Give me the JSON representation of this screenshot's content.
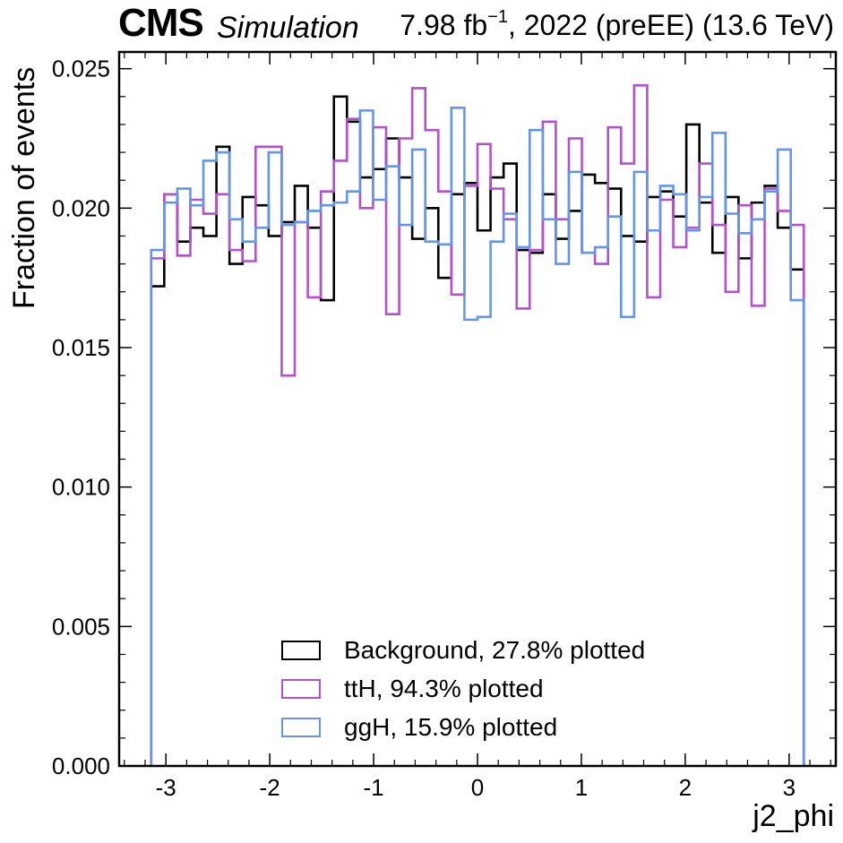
{
  "header": {
    "experiment": "CMS",
    "status": "Simulation",
    "lumi_value": "7.98 fb",
    "lumi_exponent": "−1",
    "lumi_rest": ", 2022 (preEE) (13.6 TeV)"
  },
  "chart_data": {
    "type": "step-histogram",
    "xlabel": "j2_phi",
    "ylabel": "Fraction of events",
    "xlim": [
      -3.45,
      3.45
    ],
    "ylim": [
      0,
      0.0256
    ],
    "x_edges_range": [
      -3.1416,
      3.1416
    ],
    "n_bins": 50,
    "x_ticks": [
      -3,
      -2,
      -1,
      0,
      1,
      2,
      3
    ],
    "x_tick_labels": [
      "-3",
      "-2",
      "-1",
      "0",
      "1",
      "2",
      "3"
    ],
    "y_ticks": [
      0.0,
      0.005,
      0.01,
      0.015,
      0.02,
      0.025
    ],
    "y_tick_labels": [
      "0.000",
      "0.005",
      "0.010",
      "0.015",
      "0.020",
      "0.025"
    ],
    "grid": false,
    "legend_position": "bottom-center",
    "series": [
      {
        "name": "Background, 27.8% plotted",
        "color": "#000000",
        "values": [
          0.0172,
          0.0205,
          0.0188,
          0.0193,
          0.019,
          0.0222,
          0.018,
          0.0204,
          0.0201,
          0.019,
          0.0195,
          0.0208,
          0.0193,
          0.0167,
          0.024,
          0.0231,
          0.0211,
          0.0214,
          0.0225,
          0.0211,
          0.0189,
          0.02,
          0.0175,
          0.0205,
          0.0209,
          0.0192,
          0.0211,
          0.0216,
          0.0185,
          0.0184,
          0.0205,
          0.0189,
          0.0199,
          0.0212,
          0.0209,
          0.0207,
          0.019,
          0.0188,
          0.0204,
          0.0206,
          0.0197,
          0.023,
          0.0202,
          0.0184,
          0.0204,
          0.0182,
          0.0202,
          0.0208,
          0.0193,
          0.0178
        ]
      },
      {
        "name": "ttH, 94.3% plotted",
        "color": "#b452cd",
        "values": [
          0.0182,
          0.0205,
          0.0183,
          0.0203,
          0.0198,
          0.0205,
          0.0185,
          0.0181,
          0.0222,
          0.0222,
          0.014,
          0.0195,
          0.0168,
          0.0206,
          0.0217,
          0.0232,
          0.02,
          0.0229,
          0.0162,
          0.0225,
          0.0243,
          0.0228,
          0.0206,
          0.0169,
          0.0208,
          0.0223,
          0.0207,
          0.0196,
          0.0164,
          0.0185,
          0.0231,
          0.0196,
          0.0225,
          0.0184,
          0.018,
          0.0229,
          0.0216,
          0.0244,
          0.0168,
          0.0203,
          0.0186,
          0.0193,
          0.0216,
          0.0194,
          0.017,
          0.0201,
          0.0165,
          0.0207,
          0.0199,
          0.0194
        ]
      },
      {
        "name": "ggH, 15.9% plotted",
        "color": "#6495ed",
        "values": [
          0.0185,
          0.0202,
          0.0207,
          0.0201,
          0.0217,
          0.022,
          0.0196,
          0.0188,
          0.0193,
          0.022,
          0.0194,
          0.0195,
          0.0199,
          0.0201,
          0.0202,
          0.0206,
          0.0235,
          0.0203,
          0.0215,
          0.0194,
          0.0221,
          0.0188,
          0.0187,
          0.0236,
          0.016,
          0.0161,
          0.0188,
          0.0198,
          0.0186,
          0.0228,
          0.0196,
          0.018,
          0.0213,
          0.0184,
          0.0186,
          0.0197,
          0.0161,
          0.0213,
          0.0192,
          0.0208,
          0.0205,
          0.0192,
          0.0204,
          0.0227,
          0.0198,
          0.0191,
          0.0196,
          0.0206,
          0.0221,
          0.0167
        ]
      }
    ]
  }
}
